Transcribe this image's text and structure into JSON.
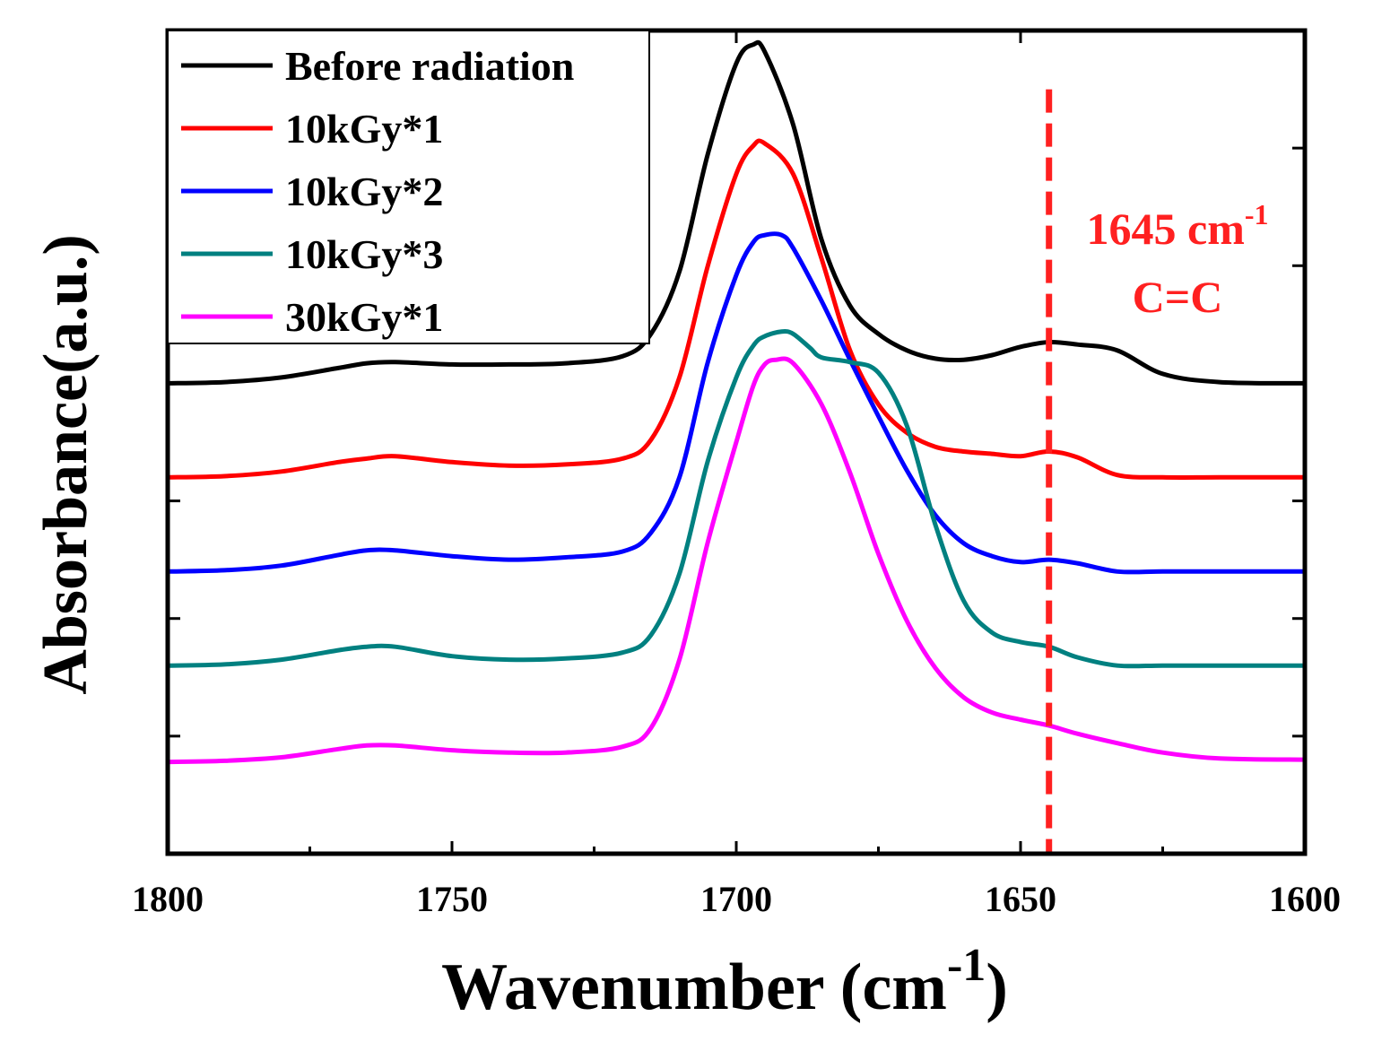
{
  "chart_data": {
    "type": "line",
    "title": "",
    "xlabel": "Wavenumber (cm",
    "xlabel_sup": "-1",
    "xlabel_close": ")",
    "ylabel": "Absorbance(a.u.)",
    "xlim": [
      1800,
      1600
    ],
    "x_reversed": true,
    "ylim": [
      0,
      7
    ],
    "y_ticks_labeled": false,
    "grid": false,
    "x_ticks": [
      1800,
      1750,
      1700,
      1650,
      1600
    ],
    "x_tick_labels": [
      "1800",
      "1750",
      "1700",
      "1650",
      "1600"
    ],
    "legend_position": "top-left",
    "series": [
      {
        "name": "Before radiation",
        "color": "#000000",
        "x": [
          1800,
          1790,
          1780,
          1770,
          1765,
          1760,
          1750,
          1740,
          1730,
          1720,
          1715,
          1710,
          1705,
          1700,
          1697,
          1695,
          1690,
          1685,
          1680,
          1675,
          1670,
          1665,
          1660,
          1655,
          1650,
          1645,
          1640,
          1633,
          1625,
          1615,
          1600
        ],
        "y": [
          4.0,
          4.01,
          4.05,
          4.13,
          4.17,
          4.18,
          4.16,
          4.16,
          4.17,
          4.23,
          4.42,
          4.95,
          5.95,
          6.72,
          6.88,
          6.82,
          6.2,
          5.22,
          4.66,
          4.42,
          4.28,
          4.21,
          4.2,
          4.24,
          4.31,
          4.35,
          4.33,
          4.28,
          4.08,
          4.01,
          4.0
        ]
      },
      {
        "name": "10kGy*1",
        "color": "#ff0000",
        "x": [
          1800,
          1790,
          1780,
          1770,
          1765,
          1760,
          1750,
          1740,
          1730,
          1720,
          1715,
          1710,
          1705,
          1700,
          1697,
          1695,
          1690,
          1685,
          1680,
          1675,
          1670,
          1665,
          1660,
          1655,
          1650,
          1645,
          1640,
          1633,
          1625,
          1615,
          1600
        ],
        "y": [
          3.2,
          3.21,
          3.25,
          3.33,
          3.36,
          3.38,
          3.33,
          3.3,
          3.31,
          3.36,
          3.52,
          4.05,
          5.0,
          5.78,
          6.02,
          6.04,
          5.78,
          5.06,
          4.28,
          3.82,
          3.58,
          3.46,
          3.42,
          3.4,
          3.38,
          3.42,
          3.37,
          3.22,
          3.2,
          3.2,
          3.2
        ]
      },
      {
        "name": "10kGy*2",
        "color": "#0000ff",
        "x": [
          1800,
          1790,
          1780,
          1770,
          1765,
          1760,
          1750,
          1740,
          1730,
          1720,
          1715,
          1710,
          1705,
          1700,
          1697,
          1695,
          1692,
          1690,
          1685,
          1680,
          1675,
          1670,
          1665,
          1660,
          1655,
          1650,
          1645,
          1640,
          1633,
          1625,
          1615,
          1600
        ],
        "y": [
          2.4,
          2.41,
          2.45,
          2.54,
          2.58,
          2.58,
          2.53,
          2.5,
          2.52,
          2.57,
          2.73,
          3.2,
          4.18,
          4.92,
          5.2,
          5.26,
          5.26,
          5.15,
          4.7,
          4.2,
          3.72,
          3.26,
          2.88,
          2.64,
          2.53,
          2.48,
          2.5,
          2.47,
          2.4,
          2.4,
          2.4,
          2.4
        ]
      },
      {
        "name": "10kGy*3",
        "color": "#008080",
        "x": [
          1800,
          1790,
          1780,
          1770,
          1765,
          1760,
          1750,
          1740,
          1730,
          1720,
          1715,
          1710,
          1705,
          1700,
          1697,
          1695,
          1692,
          1690,
          1687,
          1685,
          1680,
          1675,
          1670,
          1665,
          1660,
          1655,
          1650,
          1645,
          1640,
          1633,
          1625,
          1615,
          1600
        ],
        "y": [
          1.6,
          1.61,
          1.65,
          1.73,
          1.76,
          1.76,
          1.68,
          1.65,
          1.66,
          1.71,
          1.86,
          2.38,
          3.34,
          4.05,
          4.32,
          4.4,
          4.44,
          4.42,
          4.3,
          4.22,
          4.18,
          4.09,
          3.64,
          2.8,
          2.15,
          1.88,
          1.8,
          1.76,
          1.67,
          1.6,
          1.6,
          1.6,
          1.6
        ]
      },
      {
        "name": "30kGy*1",
        "color": "#ff00ff",
        "x": [
          1800,
          1790,
          1780,
          1770,
          1765,
          1760,
          1750,
          1740,
          1730,
          1720,
          1715,
          1710,
          1705,
          1700,
          1697,
          1695,
          1693,
          1690,
          1685,
          1680,
          1675,
          1670,
          1665,
          1660,
          1655,
          1650,
          1645,
          1640,
          1633,
          1625,
          1615,
          1600
        ],
        "y": [
          0.78,
          0.79,
          0.82,
          0.89,
          0.92,
          0.92,
          0.88,
          0.86,
          0.86,
          0.91,
          1.07,
          1.65,
          2.65,
          3.5,
          3.98,
          4.16,
          4.2,
          4.17,
          3.82,
          3.24,
          2.55,
          1.98,
          1.58,
          1.33,
          1.2,
          1.14,
          1.09,
          1.02,
          0.94,
          0.86,
          0.81,
          0.8
        ]
      }
    ],
    "annotations": [
      {
        "type": "vline",
        "x": 1645,
        "style": "dashed",
        "color": "#ff2020",
        "y_from": 0,
        "y_to": 6.5
      },
      {
        "type": "text",
        "lines": [
          "1645 cm",
          "C=C"
        ],
        "sup": "-1",
        "color": "#ff2020"
      }
    ]
  }
}
